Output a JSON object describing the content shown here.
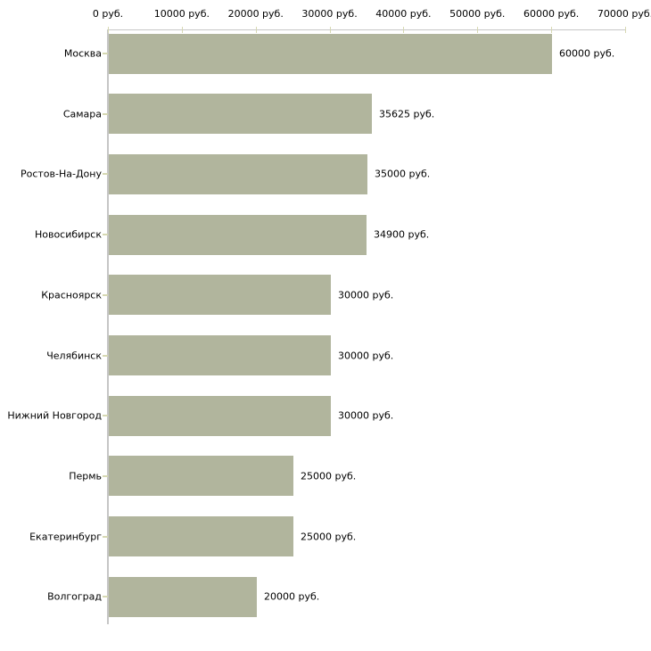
{
  "chart_data": {
    "type": "bar",
    "orientation": "horizontal",
    "title": "",
    "unit": "руб.",
    "categories": [
      "Москва",
      "Самара",
      "Ростов-На-Дону",
      "Новосибирск",
      "Красноярск",
      "Челябинск",
      "Нижний Новгород",
      "Пермь",
      "Екатеринбург",
      "Волгоград"
    ],
    "values": [
      60000,
      35625,
      35000,
      34900,
      30000,
      30000,
      30000,
      25000,
      25000,
      20000
    ],
    "value_labels": [
      "60000 руб.",
      "35625 руб.",
      "35000 руб.",
      "34900 руб.",
      "30000 руб.",
      "30000 руб.",
      "30000 руб.",
      "25000 руб.",
      "25000 руб.",
      "20000 руб."
    ],
    "x_tick_values": [
      0,
      10000,
      20000,
      30000,
      40000,
      50000,
      60000,
      70000
    ],
    "x_tick_labels": [
      "0 руб.",
      "10000 руб.",
      "20000 руб.",
      "30000 руб.",
      "40000 руб.",
      "50000 руб.",
      "60000 руб.",
      "70000 руб."
    ],
    "xlim": [
      0,
      70000
    ],
    "grid": false,
    "legend": false,
    "axis_position": "top",
    "colors": {
      "bar": "#b1b59d",
      "axis_line": "#c6c6c6",
      "tick_mark": "#d6d8b2",
      "text": "#000000",
      "background": "#ffffff"
    }
  }
}
